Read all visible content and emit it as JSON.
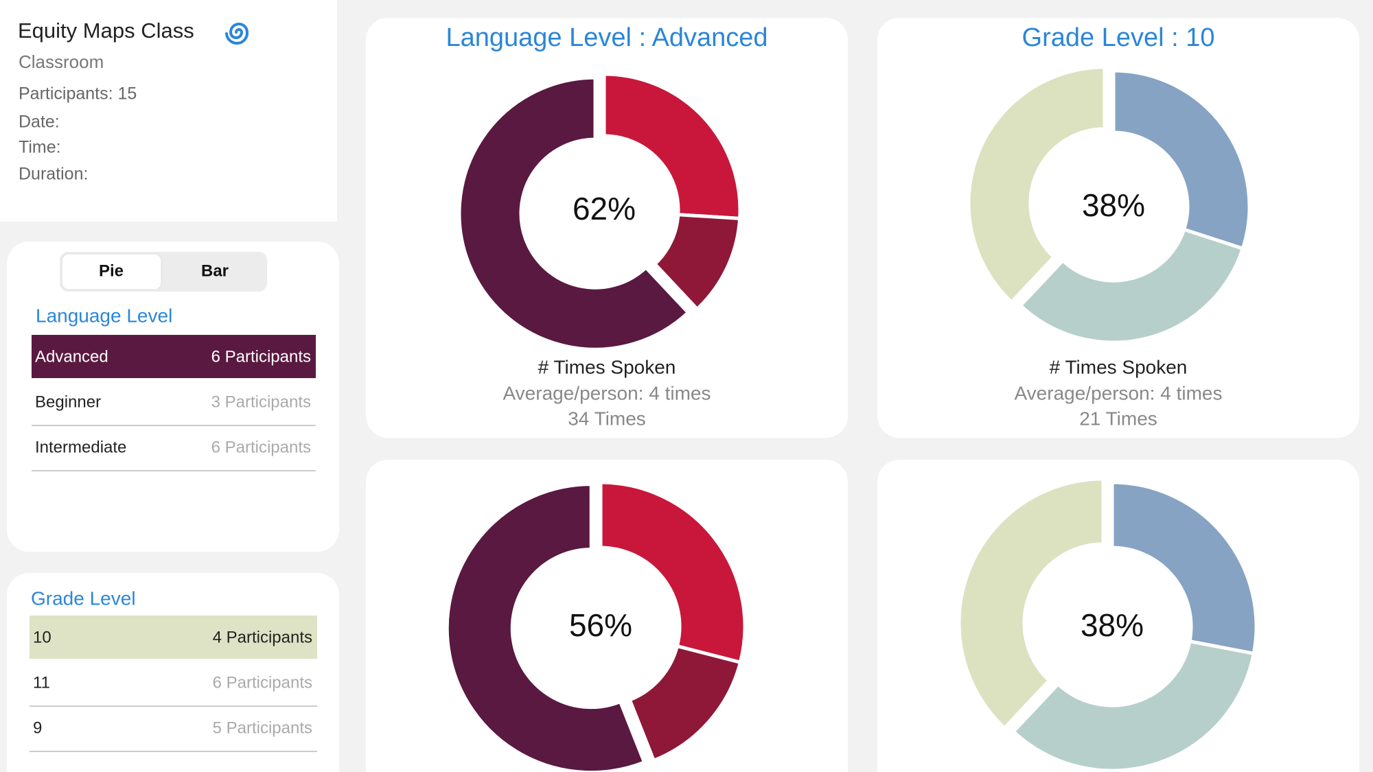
{
  "header": {
    "title": "Equity Maps Class",
    "subtitle": "Classroom",
    "participants": "Participants: 15",
    "date": "Date:",
    "time": "Time:",
    "duration": "Duration:"
  },
  "toggle": {
    "options": [
      "Pie",
      "Bar"
    ],
    "selected": 0
  },
  "groups": [
    {
      "title": "Language Level",
      "selected_row": 0,
      "selected_color": "#5a1940",
      "selected_text_color": "#ffffff",
      "rows": [
        {
          "label": "Advanced",
          "count": "6 Participants"
        },
        {
          "label": "Beginner",
          "count": "3 Participants"
        },
        {
          "label": "Intermediate",
          "count": "6 Participants"
        }
      ]
    },
    {
      "title": "Grade Level",
      "selected_row": 0,
      "selected_color": "#dde3c4",
      "selected_text_color": "#222222",
      "rows": [
        {
          "label": "10",
          "count": "4 Participants"
        },
        {
          "label": "11",
          "count": "6 Participants"
        },
        {
          "label": "9",
          "count": "5 Participants"
        }
      ]
    }
  ],
  "charts": [
    {
      "type": "donut",
      "title": "Language Level : Advanced",
      "center": "62%",
      "caption": "# Times Spoken",
      "average": "Average/person: 4 times",
      "total": "34 Times",
      "segments": [
        {
          "color": "#c8173a",
          "value": 26
        },
        {
          "color": "#8f1838",
          "value": 12
        },
        {
          "color": "#5a1940",
          "value": 62
        }
      ]
    },
    {
      "type": "donut",
      "title": "Grade Level : 10",
      "center": "38%",
      "caption": "# Times Spoken",
      "average": "Average/person: 4 times",
      "total": "21 Times",
      "segments": [
        {
          "color": "#86a3c4",
          "value": 30
        },
        {
          "color": "#b7cfcb",
          "value": 32
        },
        {
          "color": "#dce2c0",
          "value": 38
        }
      ]
    },
    {
      "type": "donut",
      "center": "56%",
      "segments": [
        {
          "color": "#c8173a",
          "value": 29
        },
        {
          "color": "#8f1838",
          "value": 15
        },
        {
          "color": "#5a1940",
          "value": 56
        }
      ]
    },
    {
      "type": "donut",
      "center": "38%",
      "segments": [
        {
          "color": "#86a3c4",
          "value": 28
        },
        {
          "color": "#b7cfcb",
          "value": 34
        },
        {
          "color": "#dce2c0",
          "value": 38
        }
      ]
    }
  ]
}
